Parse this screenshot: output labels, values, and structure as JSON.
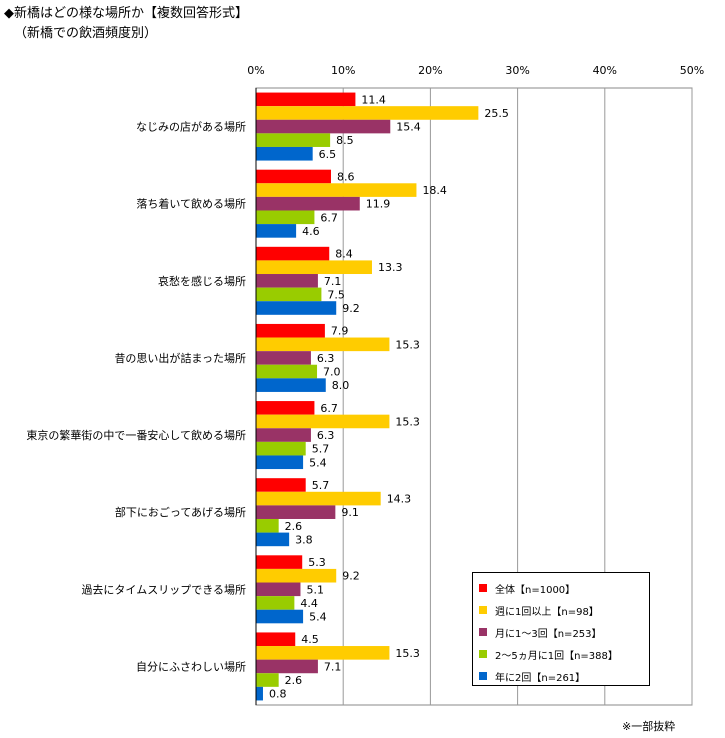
{
  "header": {
    "title": "◆新橋はどの様な場所か【複数回答形式】",
    "subtitle": "（新橋での飲酒頻度別）"
  },
  "footnote": "※一部抜粋",
  "colors": {
    "series": [
      "#ff0000",
      "#ffcc00",
      "#993366",
      "#99cc00",
      "#0066cc"
    ],
    "grid": "#999999",
    "axis": "#000000"
  },
  "chart_data": {
    "type": "bar",
    "orientation": "horizontal",
    "xlim": [
      0,
      50
    ],
    "x_ticks": [
      "0%",
      "10%",
      "20%",
      "30%",
      "40%",
      "50%"
    ],
    "grid": true,
    "legend_position": "bottom-right",
    "categories": [
      "なじみの店がある場所",
      "落ち着いて飲める場所",
      "哀愁を感じる場所",
      "昔の思い出が詰まった場所",
      "東京の繁華街の中で一番安心して飲める場所",
      "部下におごってあげる場所",
      "過去にタイムスリップできる場所",
      "自分にふさわしい場所"
    ],
    "series": [
      {
        "name": "全体【n=1000】",
        "values": [
          11.4,
          8.6,
          8.4,
          7.9,
          6.7,
          5.7,
          5.3,
          4.5
        ]
      },
      {
        "name": "週に1回以上【n=98】",
        "values": [
          25.5,
          18.4,
          13.3,
          15.3,
          15.3,
          14.3,
          9.2,
          15.3
        ]
      },
      {
        "name": "月に1～3回【n=253】",
        "values": [
          15.4,
          11.9,
          7.1,
          6.3,
          6.3,
          9.1,
          5.1,
          7.1
        ]
      },
      {
        "name": "2～5ヵ月に1回【n=388】",
        "values": [
          8.5,
          6.7,
          7.5,
          7.0,
          5.7,
          2.6,
          4.4,
          2.6
        ]
      },
      {
        "name": "年に2回【n=261】",
        "values": [
          6.5,
          4.6,
          9.2,
          8.0,
          5.4,
          3.8,
          5.4,
          0.8
        ]
      }
    ]
  }
}
